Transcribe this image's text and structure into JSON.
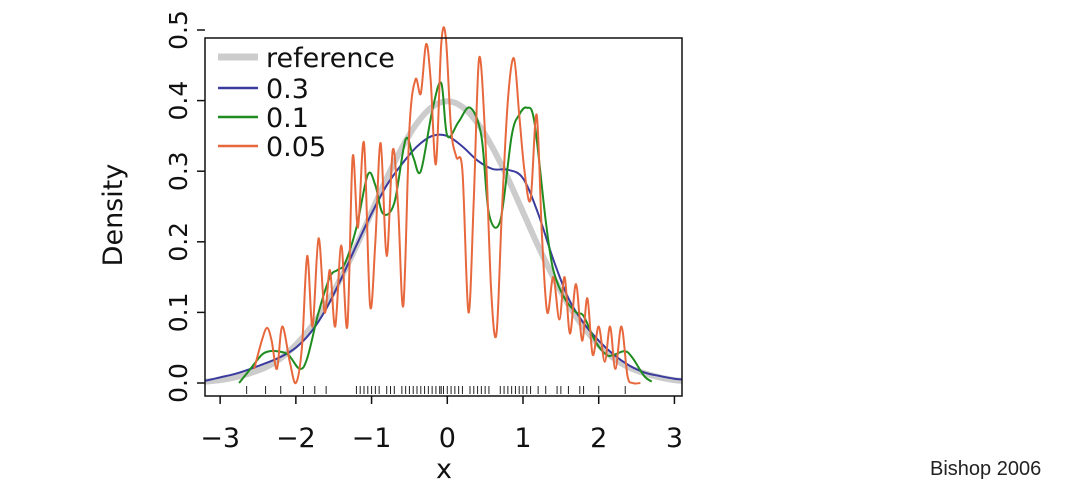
{
  "credit": "Bishop 2006",
  "chart_data": {
    "type": "line",
    "title": "",
    "xlabel": "x",
    "ylabel": "Density",
    "xlim": [
      -3.2,
      3.1
    ],
    "ylim": [
      0,
      0.5
    ],
    "xticks": [
      "−3",
      "−2",
      "−1",
      "0",
      "1",
      "2",
      "3"
    ],
    "xtick_values": [
      -3,
      -2,
      -1,
      0,
      1,
      2,
      3
    ],
    "yticks": [
      "0.0",
      "0.1",
      "0.2",
      "0.3",
      "0.4",
      "0.5"
    ],
    "ytick_values": [
      0,
      0.1,
      0.2,
      0.3,
      0.4,
      0.5
    ],
    "legend_position": "top-left",
    "series": [
      {
        "name": "reference",
        "color": "#cccccc",
        "x": [
          -3.2,
          -3.0,
          -2.8,
          -2.6,
          -2.4,
          -2.2,
          -2.0,
          -1.8,
          -1.6,
          -1.4,
          -1.2,
          -1.0,
          -0.8,
          -0.6,
          -0.4,
          -0.2,
          0.0,
          0.2,
          0.4,
          0.6,
          0.8,
          1.0,
          1.2,
          1.4,
          1.6,
          1.8,
          2.0,
          2.2,
          2.4,
          2.6,
          2.8,
          3.0,
          3.1
        ],
        "y": [
          0.002,
          0.004,
          0.008,
          0.014,
          0.022,
          0.035,
          0.054,
          0.079,
          0.111,
          0.15,
          0.194,
          0.242,
          0.29,
          0.333,
          0.368,
          0.391,
          0.399,
          0.391,
          0.368,
          0.333,
          0.29,
          0.242,
          0.194,
          0.15,
          0.111,
          0.079,
          0.054,
          0.035,
          0.022,
          0.014,
          0.008,
          0.004,
          0.003
        ]
      },
      {
        "name": "0.3",
        "color": "#3b3b9e",
        "x": [
          -3.2,
          -3.0,
          -2.8,
          -2.6,
          -2.4,
          -2.2,
          -2.0,
          -1.8,
          -1.6,
          -1.4,
          -1.2,
          -1.0,
          -0.8,
          -0.6,
          -0.4,
          -0.2,
          0.0,
          0.2,
          0.4,
          0.6,
          0.8,
          1.0,
          1.2,
          1.4,
          1.6,
          1.8,
          2.0,
          2.2,
          2.4,
          2.6,
          2.8,
          3.0,
          3.1
        ],
        "y": [
          0.003,
          0.008,
          0.013,
          0.02,
          0.028,
          0.037,
          0.05,
          0.072,
          0.105,
          0.148,
          0.195,
          0.24,
          0.28,
          0.31,
          0.335,
          0.35,
          0.35,
          0.335,
          0.315,
          0.303,
          0.302,
          0.29,
          0.24,
          0.175,
          0.12,
          0.085,
          0.06,
          0.04,
          0.025,
          0.015,
          0.01,
          0.006,
          0.005
        ]
      },
      {
        "name": "0.1",
        "color": "#1e8c1e",
        "x": [
          -2.75,
          -2.6,
          -2.45,
          -2.35,
          -2.25,
          -2.1,
          -1.95,
          -1.85,
          -1.7,
          -1.55,
          -1.45,
          -1.35,
          -1.2,
          -1.05,
          -0.95,
          -0.85,
          -0.7,
          -0.55,
          -0.45,
          -0.35,
          -0.2,
          -0.08,
          0.0,
          0.15,
          0.3,
          0.45,
          0.55,
          0.7,
          0.85,
          0.95,
          1.05,
          1.15,
          1.3,
          1.4,
          1.55,
          1.7,
          1.8,
          1.95,
          2.1,
          2.2,
          2.35,
          2.45,
          2.6,
          2.7
        ],
        "y": [
          0.0,
          0.02,
          0.04,
          0.045,
          0.045,
          0.04,
          0.02,
          0.035,
          0.1,
          0.15,
          0.16,
          0.17,
          0.22,
          0.295,
          0.28,
          0.24,
          0.255,
          0.345,
          0.32,
          0.3,
          0.385,
          0.425,
          0.35,
          0.37,
          0.39,
          0.35,
          0.24,
          0.23,
          0.35,
          0.38,
          0.39,
          0.37,
          0.23,
          0.16,
          0.12,
          0.1,
          0.095,
          0.06,
          0.04,
          0.04,
          0.045,
          0.035,
          0.01,
          0.002
        ]
      },
      {
        "name": "0.05",
        "color": "#e8683d",
        "x": [
          -2.55,
          -2.45,
          -2.38,
          -2.32,
          -2.25,
          -2.18,
          -2.08,
          -2.0,
          -1.92,
          -1.85,
          -1.78,
          -1.7,
          -1.62,
          -1.55,
          -1.48,
          -1.4,
          -1.32,
          -1.25,
          -1.18,
          -1.1,
          -1.02,
          -0.95,
          -0.88,
          -0.8,
          -0.72,
          -0.65,
          -0.58,
          -0.5,
          -0.42,
          -0.35,
          -0.28,
          -0.22,
          -0.15,
          -0.08,
          -0.02,
          0.05,
          0.12,
          0.2,
          0.28,
          0.35,
          0.42,
          0.5,
          0.58,
          0.65,
          0.72,
          0.8,
          0.88,
          0.95,
          1.02,
          1.1,
          1.18,
          1.25,
          1.32,
          1.4,
          1.48,
          1.55,
          1.62,
          1.7,
          1.78,
          1.85,
          1.92,
          2.0,
          2.08,
          2.15,
          2.22,
          2.3,
          2.38,
          2.45,
          2.55
        ],
        "y": [
          0.02,
          0.06,
          0.078,
          0.06,
          0.02,
          0.08,
          0.03,
          0.0,
          0.05,
          0.18,
          0.08,
          0.205,
          0.1,
          0.16,
          0.08,
          0.195,
          0.08,
          0.32,
          0.22,
          0.34,
          0.11,
          0.2,
          0.34,
          0.18,
          0.33,
          0.25,
          0.11,
          0.36,
          0.43,
          0.41,
          0.48,
          0.43,
          0.31,
          0.48,
          0.49,
          0.36,
          0.32,
          0.3,
          0.1,
          0.26,
          0.46,
          0.35,
          0.13,
          0.07,
          0.24,
          0.4,
          0.46,
          0.38,
          0.3,
          0.26,
          0.38,
          0.21,
          0.1,
          0.15,
          0.09,
          0.15,
          0.07,
          0.14,
          0.06,
          0.12,
          0.04,
          0.08,
          0.03,
          0.08,
          0.02,
          0.08,
          0.01,
          0.0,
          0.0
        ]
      }
    ],
    "rug": [
      -2.65,
      -2.4,
      -2.2,
      -1.9,
      -1.75,
      -1.6,
      -1.2,
      -1.15,
      -1.1,
      -1.05,
      -1.0,
      -0.95,
      -0.9,
      -0.8,
      -0.75,
      -0.7,
      -0.6,
      -0.55,
      -0.5,
      -0.45,
      -0.4,
      -0.35,
      -0.3,
      -0.25,
      -0.2,
      -0.15,
      -0.1,
      -0.08,
      -0.05,
      0.0,
      0.05,
      0.1,
      0.15,
      0.2,
      0.3,
      0.35,
      0.4,
      0.45,
      0.5,
      0.55,
      0.7,
      0.75,
      0.8,
      0.85,
      0.9,
      0.95,
      1.0,
      1.05,
      1.1,
      1.2,
      1.3,
      1.45,
      1.5,
      1.6,
      1.75,
      1.8,
      2.0,
      2.35
    ]
  }
}
